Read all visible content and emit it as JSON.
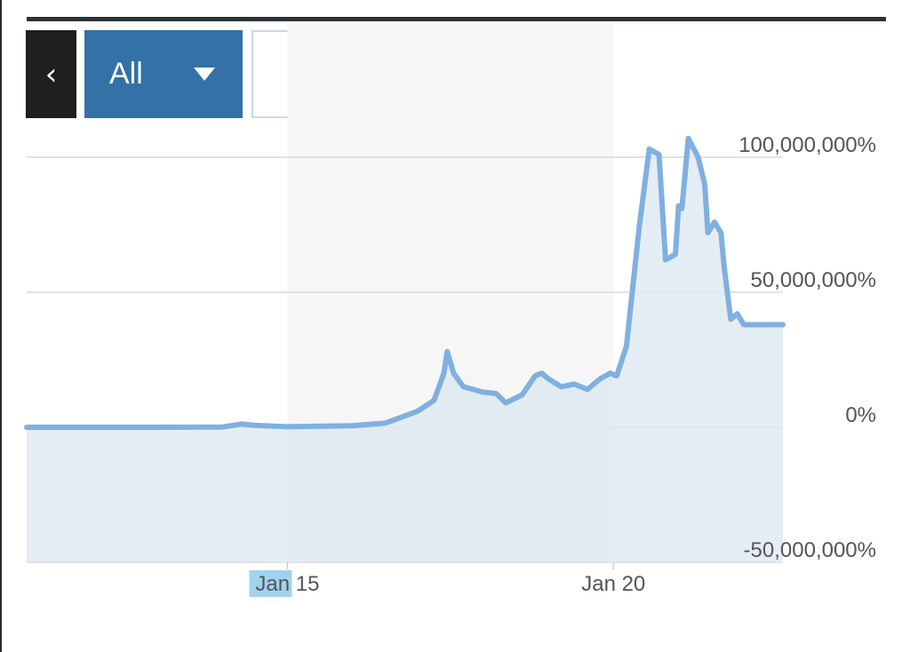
{
  "toolbar": {
    "back_label": "‹",
    "range_label": "All",
    "unit_dollar": "$",
    "unit_percent": "%",
    "selected_unit": "%"
  },
  "colors": {
    "line": "#7fb0e0",
    "fill": "#dfe8f1",
    "range_button": "#3371a6",
    "grid": "#d8d8d8"
  },
  "chart_data": {
    "type": "area",
    "title": "",
    "xlabel": "",
    "ylabel": "",
    "x_unit": "day of January",
    "xlim": [
      11,
      22.6
    ],
    "ylim": [
      -50000000,
      100000000
    ],
    "y_ticks": [
      {
        "value": 100000000,
        "label": "100,000,000%"
      },
      {
        "value": 50000000,
        "label": "50,000,000%"
      },
      {
        "value": 0,
        "label": "0%"
      },
      {
        "value": -50000000,
        "label": "-50,000,000%"
      }
    ],
    "x_ticks": [
      {
        "value": 15,
        "label": "Jan 15",
        "highlight": "Jan"
      },
      {
        "value": 20,
        "label": "Jan 20"
      }
    ],
    "shaded_range": [
      15,
      20
    ],
    "grid": "horizontal",
    "series": [
      {
        "x": [
          11,
          12,
          13,
          14,
          14.3,
          14.5,
          15,
          16,
          16.5,
          17,
          17.25,
          17.4,
          17.45,
          17.55,
          17.7,
          17.85,
          18,
          18.2,
          18.35,
          18.6,
          18.8,
          18.9,
          19,
          19.2,
          19.4,
          19.6,
          19.8,
          19.95,
          20.05,
          20.2,
          20.4,
          20.55,
          20.7,
          20.8,
          20.95,
          21,
          21.05,
          21.15,
          21.3,
          21.4,
          21.45,
          21.55,
          21.65,
          21.7,
          21.8,
          21.9,
          22.0,
          22.1,
          22.2,
          22.3,
          22.4,
          22.5,
          22.6
        ],
        "y": [
          0,
          0,
          0,
          100000,
          1200000,
          700000,
          200000,
          600000,
          1500000,
          6000000,
          10000000,
          20000000,
          28000000,
          20000000,
          15000000,
          14000000,
          13000000,
          12500000,
          9000000,
          12000000,
          19000000,
          20000000,
          18000000,
          15000000,
          16000000,
          14000000,
          18000000,
          20000000,
          19000000,
          30000000,
          75000000,
          103000000,
          101000000,
          62000000,
          64000000,
          82000000,
          81000000,
          107000000,
          100000000,
          90000000,
          72000000,
          76000000,
          72000000,
          59000000,
          40000000,
          42000000,
          38000000,
          38000000,
          38000000,
          38000000,
          38000000,
          38000000,
          38000000
        ]
      }
    ]
  }
}
